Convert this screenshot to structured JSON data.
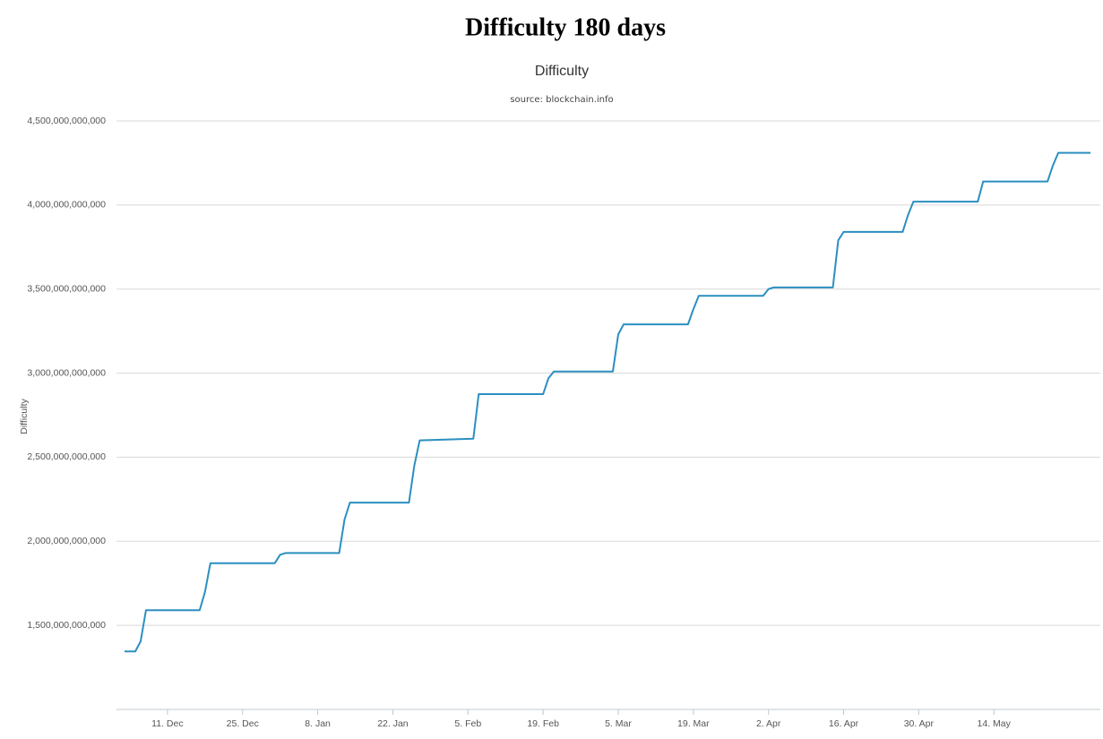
{
  "chart_data": {
    "type": "line",
    "title": "Difficulty 180 days",
    "subtitle": "Difficulty",
    "source": "source: blockchain.info",
    "y_label": "Difficulty",
    "grid": true,
    "xlim": [
      -9.5,
      173.5
    ],
    "xticks": [
      {
        "value": 0,
        "label": "11. Dec"
      },
      {
        "value": 14,
        "label": "25. Dec"
      },
      {
        "value": 28,
        "label": "8. Jan"
      },
      {
        "value": 42,
        "label": "22. Jan"
      },
      {
        "value": 56,
        "label": "5. Feb"
      },
      {
        "value": 70,
        "label": "19. Feb"
      },
      {
        "value": 84,
        "label": "5. Mar"
      },
      {
        "value": 98,
        "label": "19. Mar"
      },
      {
        "value": 112,
        "label": "2. Apr"
      },
      {
        "value": 126,
        "label": "16. Apr"
      },
      {
        "value": 140,
        "label": "30. Apr"
      },
      {
        "value": 154,
        "label": "14. May"
      }
    ],
    "ylim": [
      1000000000000,
      4500000000000
    ],
    "yticks": [
      {
        "value": 1500000000000,
        "label": "1,500,000,000,000"
      },
      {
        "value": 2000000000000,
        "label": "2,000,000,000,000"
      },
      {
        "value": 2500000000000,
        "label": "2,500,000,000,000"
      },
      {
        "value": 3000000000000,
        "label": "3,000,000,000,000"
      },
      {
        "value": 3500000000000,
        "label": "3,500,000,000,000"
      },
      {
        "value": 4000000000000,
        "label": "4,000,000,000,000"
      },
      {
        "value": 4500000000000,
        "label": "4,500,000,000,000"
      }
    ],
    "series": [
      {
        "name": "Difficulty",
        "color": "#2b8fc1",
        "x": [
          -8,
          -6,
          -5,
          -4,
          6,
          7,
          8,
          20,
          21,
          22,
          32,
          33,
          34,
          45,
          46,
          47,
          57,
          58,
          70,
          71,
          72,
          83,
          84,
          85,
          97,
          98,
          99,
          111,
          112,
          113,
          124,
          125,
          126,
          137,
          138,
          139,
          151,
          152,
          164,
          165,
          166,
          172
        ],
        "values": [
          1345000000000,
          1345000000000,
          1405000000000,
          1590000000000,
          1590000000000,
          1700000000000,
          1870000000000,
          1870000000000,
          1920000000000,
          1930000000000,
          1930000000000,
          2130000000000,
          2230000000000,
          2230000000000,
          2450000000000,
          2600000000000,
          2610000000000,
          2875000000000,
          2875000000000,
          2970000000000,
          3010000000000,
          3010000000000,
          3230000000000,
          3290000000000,
          3290000000000,
          3380000000000,
          3460000000000,
          3460000000000,
          3500000000000,
          3510000000000,
          3510000000000,
          3790000000000,
          3840000000000,
          3840000000000,
          3940000000000,
          4020000000000,
          4020000000000,
          4140000000000,
          4140000000000,
          4235000000000,
          4310000000000,
          4310000000000
        ]
      }
    ]
  }
}
